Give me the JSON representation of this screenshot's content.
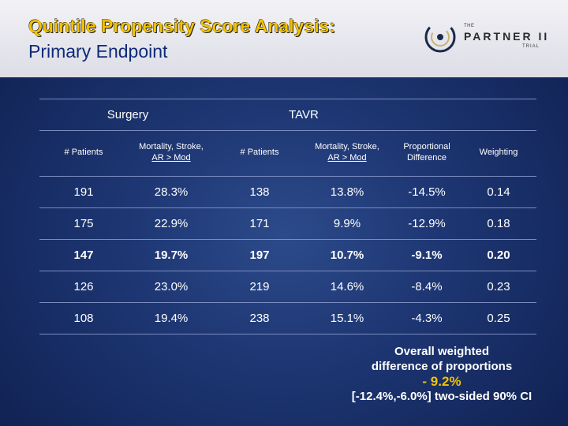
{
  "title": {
    "line1": "Quintile Propensity Score Analysis:",
    "line2": "Primary Endpoint"
  },
  "logo": {
    "the": "THE",
    "brand": "PARTNER II",
    "trial": "TRIAL"
  },
  "table": {
    "group_headers": {
      "surgery": "Surgery",
      "tavr": "TAVR"
    },
    "column_headers": [
      {
        "line1": "# Patients",
        "line2": ""
      },
      {
        "line1": "Mortality, Stroke,",
        "line2": "AR > Mod"
      },
      {
        "line1": "# Patients",
        "line2": ""
      },
      {
        "line1": "Mortality, Stroke,",
        "line2": "AR > Mod"
      },
      {
        "line1": "Proportional",
        "line2": "Difference"
      },
      {
        "line1": "Weighting",
        "line2": ""
      }
    ],
    "rows": [
      {
        "bold": false,
        "cells": [
          "191",
          "28.3%",
          "138",
          "13.8%",
          "-14.5%",
          "0.14"
        ]
      },
      {
        "bold": false,
        "cells": [
          "175",
          "22.9%",
          "171",
          "9.9%",
          "-12.9%",
          "0.18"
        ]
      },
      {
        "bold": true,
        "cells": [
          "147",
          "19.7%",
          "197",
          "10.7%",
          "-9.1%",
          "0.20"
        ]
      },
      {
        "bold": false,
        "cells": [
          "126",
          "23.0%",
          "219",
          "14.6%",
          "-8.4%",
          "0.23"
        ]
      },
      {
        "bold": false,
        "cells": [
          "108",
          "19.4%",
          "238",
          "15.1%",
          "-4.3%",
          "0.25"
        ]
      }
    ]
  },
  "summary": {
    "line1": "Overall weighted",
    "line2": "difference of proportions",
    "value": "- 9.2%",
    "ci": "[-12.4%,-6.0%] two-sided 90% CI"
  },
  "colors": {
    "title_yellow": "#f2c200",
    "title_blue": "#0e2a78",
    "background": "#1c3470"
  }
}
